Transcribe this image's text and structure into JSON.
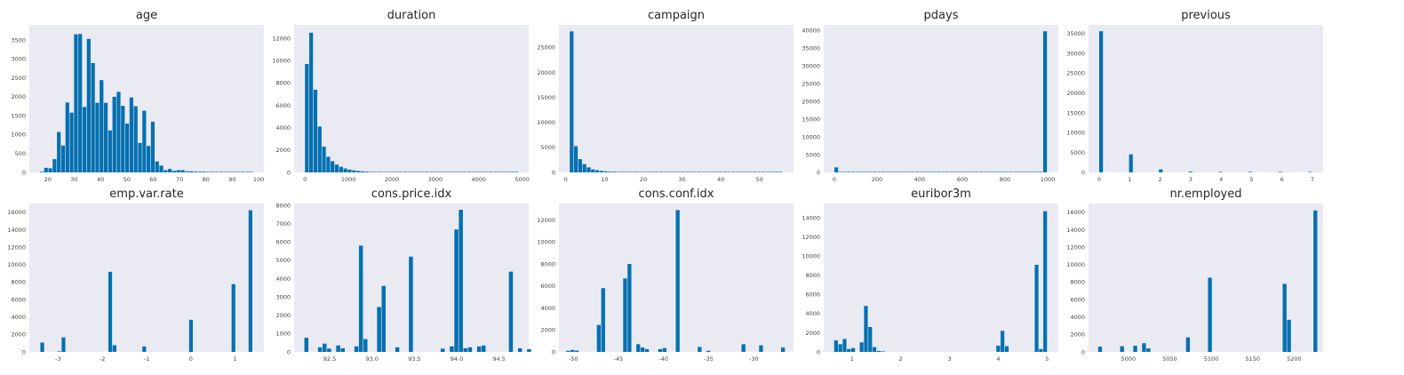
{
  "colors": {
    "bar": "#0570b0",
    "plot_bg": "#eaeaf2",
    "text": "#262626",
    "tick_text": "#444444"
  },
  "chart_data": [
    {
      "type": "bar",
      "title": "age",
      "xlim": [
        13,
        102
      ],
      "ylim": [
        0,
        3900
      ],
      "xticks": [
        20,
        30,
        40,
        50,
        60,
        70,
        80,
        90,
        100
      ],
      "yticks": [
        0,
        500,
        1000,
        1500,
        2000,
        2500,
        3000,
        3500
      ],
      "bins": {
        "start": 17,
        "width": 1.62,
        "values": [
          20,
          120,
          110,
          350,
          1070,
          710,
          1850,
          1580,
          3650,
          3660,
          1730,
          3530,
          2890,
          1840,
          2440,
          1840,
          1110,
          2000,
          2130,
          1760,
          1290,
          1980,
          1750,
          780,
          1630,
          700,
          1340,
          290,
          180,
          60,
          90,
          40,
          60,
          60,
          30,
          30,
          20,
          20,
          20,
          15,
          15,
          10,
          10,
          8,
          5,
          5,
          5,
          3,
          3,
          2
        ]
      }
    },
    {
      "type": "bar",
      "title": "duration",
      "xlim": [
        -250,
        5150
      ],
      "ylim": [
        0,
        13200
      ],
      "xticks": [
        0,
        1000,
        2000,
        3000,
        4000,
        5000
      ],
      "yticks": [
        0,
        2000,
        4000,
        6000,
        8000,
        10000,
        12000
      ],
      "bins": {
        "start": 0,
        "width": 98.36,
        "values": [
          9700,
          12500,
          7400,
          4100,
          2300,
          1400,
          1000,
          700,
          500,
          350,
          250,
          180,
          130,
          100,
          70,
          50,
          40,
          30,
          25,
          20,
          15,
          10,
          8,
          6,
          5,
          4,
          3,
          3,
          2,
          2,
          2,
          1,
          1,
          1,
          1,
          1,
          1,
          1,
          1,
          1,
          1,
          1,
          1,
          1,
          1,
          1,
          1,
          1,
          1,
          1
        ]
      }
    },
    {
      "type": "bar",
      "title": "campaign",
      "xlim": [
        -1.8,
        58.8
      ],
      "ylim": [
        0,
        29500
      ],
      "xticks": [
        0,
        10,
        20,
        30,
        40,
        50
      ],
      "yticks": [
        0,
        5000,
        10000,
        15000,
        20000,
        25000
      ],
      "bins": {
        "start": 1,
        "width": 1.1,
        "values": [
          28200,
          5250,
          2650,
          1650,
          1000,
          600,
          450,
          300,
          200,
          150,
          150,
          100,
          80,
          60,
          40,
          30,
          25,
          20,
          15,
          12,
          10,
          8,
          6,
          5,
          4,
          3,
          3,
          2,
          2,
          2,
          2,
          2,
          1,
          1,
          1,
          1,
          1,
          1,
          1,
          1,
          1,
          1,
          1,
          1,
          1,
          1,
          1,
          1,
          1,
          1
        ]
      }
    },
    {
      "type": "bar",
      "title": "pdays",
      "xlim": [
        -50,
        1050
      ],
      "ylim": [
        0,
        41500
      ],
      "xticks": [
        0,
        200,
        400,
        600,
        800,
        1000
      ],
      "yticks": [
        0,
        5000,
        10000,
        15000,
        20000,
        25000,
        30000,
        35000,
        40000
      ],
      "bins": {
        "start": 0,
        "width": 19.98,
        "values": [
          1400,
          40,
          20,
          10,
          5,
          3,
          2,
          2,
          1,
          1,
          1,
          1,
          1,
          1,
          1,
          1,
          1,
          1,
          1,
          1,
          1,
          1,
          1,
          1,
          1,
          1,
          1,
          1,
          1,
          1,
          1,
          1,
          1,
          1,
          1,
          1,
          1,
          1,
          1,
          1,
          1,
          1,
          1,
          1,
          1,
          1,
          1,
          1,
          1,
          39700
        ]
      }
    },
    {
      "type": "bar",
      "title": "previous",
      "xlim": [
        -0.35,
        7.35
      ],
      "ylim": [
        0,
        37200
      ],
      "xticks": [
        0,
        1,
        2,
        3,
        4,
        5,
        6,
        7
      ],
      "yticks": [
        0,
        5000,
        10000,
        15000,
        20000,
        25000,
        30000,
        35000
      ],
      "bins": {
        "start": 0,
        "width": 0.14,
        "values": [
          35600,
          0,
          0,
          0,
          0,
          0,
          0,
          4550,
          0,
          0,
          0,
          0,
          0,
          0,
          750,
          0,
          0,
          0,
          0,
          0,
          0,
          220,
          0,
          0,
          0,
          0,
          0,
          0,
          70,
          0,
          0,
          0,
          0,
          0,
          0,
          18,
          0,
          0,
          0,
          0,
          0,
          0,
          5,
          0,
          0,
          0,
          0,
          0,
          0,
          1
        ]
      }
    },
    {
      "type": "bar",
      "title": "emp.var.rate",
      "xlim": [
        -3.65,
        1.65
      ],
      "ylim": [
        0,
        17000
      ],
      "xticks": [
        -3,
        -2,
        -1,
        0,
        1
      ],
      "yticks": [
        0,
        2000,
        4000,
        6000,
        8000,
        10000,
        12000,
        14000,
        16000
      ],
      "bins": {
        "start": -3.4,
        "width": 0.096,
        "values": [
          1070,
          0,
          0,
          0,
          20,
          1660,
          0,
          0,
          0,
          0,
          0,
          0,
          0,
          0,
          0,
          0,
          9180,
          770,
          0,
          0,
          0,
          0,
          0,
          0,
          630,
          0,
          0,
          0,
          0,
          0,
          0,
          0,
          0,
          0,
          0,
          3680,
          0,
          0,
          0,
          0,
          0,
          0,
          0,
          0,
          0,
          7760,
          0,
          0,
          0,
          16230
        ]
      }
    },
    {
      "type": "bar",
      "title": "cons.price.idx",
      "xlim": [
        92.08,
        94.85
      ],
      "ylim": [
        0,
        8100
      ],
      "xticks": [
        92.5,
        93.0,
        93.5,
        94.0,
        94.5
      ],
      "yticks": [
        0,
        1000,
        2000,
        3000,
        4000,
        5000,
        6000,
        7000,
        8000
      ],
      "bins": {
        "start": 92.201,
        "width": 0.05366,
        "values": [
          770,
          0,
          0,
          250,
          450,
          180,
          0,
          350,
          200,
          0,
          0,
          300,
          5800,
          700,
          0,
          0,
          2450,
          3600,
          0,
          0,
          250,
          0,
          0,
          5200,
          0,
          0,
          0,
          0,
          0,
          0,
          180,
          0,
          300,
          6680,
          7760,
          200,
          250,
          0,
          300,
          350,
          0,
          0,
          0,
          0,
          0,
          4380,
          0,
          200,
          0,
          150
        ]
      }
    },
    {
      "type": "bar",
      "title": "cons.conf.idx",
      "xlim": [
        -51.6,
        -25.6
      ],
      "ylim": [
        0,
        13500
      ],
      "xticks": [
        -50,
        -45,
        -40,
        -35,
        -30
      ],
      "yticks": [
        0,
        2000,
        4000,
        6000,
        8000,
        10000,
        12000
      ],
      "bins": {
        "start": -50.8,
        "width": 0.486,
        "values": [
          100,
          180,
          120,
          0,
          0,
          0,
          0,
          2450,
          5800,
          0,
          0,
          0,
          0,
          6680,
          8000,
          0,
          700,
          400,
          250,
          0,
          0,
          250,
          350,
          0,
          0,
          12900,
          0,
          0,
          0,
          0,
          450,
          0,
          100,
          0,
          0,
          0,
          0,
          0,
          0,
          0,
          700,
          0,
          0,
          0,
          600,
          0,
          0,
          0,
          0,
          400
        ]
      }
    },
    {
      "type": "bar",
      "title": "euribor3m",
      "xlim": [
        0.42,
        5.23
      ],
      "ylim": [
        0,
        15500
      ],
      "xticks": [
        1,
        2,
        3,
        4,
        5
      ],
      "yticks": [
        0,
        2000,
        4000,
        6000,
        8000,
        10000,
        12000,
        14000
      ],
      "bins": {
        "start": 0.634,
        "width": 0.0875,
        "values": [
          1200,
          800,
          1350,
          300,
          400,
          0,
          1000,
          4800,
          2600,
          500,
          100,
          30,
          0,
          0,
          0,
          0,
          0,
          0,
          0,
          0,
          0,
          0,
          0,
          0,
          0,
          0,
          0,
          0,
          0,
          0,
          0,
          0,
          0,
          0,
          0,
          0,
          0,
          0,
          650,
          2200,
          600,
          0,
          0,
          0,
          0,
          0,
          0,
          9100,
          300,
          14700
        ]
      }
    },
    {
      "type": "bar",
      "title": "nr.employed",
      "xlim": [
        4952,
        5235
      ],
      "ylim": [
        0,
        17000
      ],
      "xticks": [
        5000,
        5050,
        5100,
        5150,
        5200
      ],
      "yticks": [
        0,
        2000,
        4000,
        6000,
        8000,
        10000,
        12000,
        14000,
        16000
      ],
      "bins": {
        "start": 4963.6,
        "width": 5.3,
        "values": [
          600,
          0,
          0,
          0,
          0,
          650,
          0,
          0,
          700,
          0,
          1000,
          400,
          0,
          0,
          0,
          0,
          0,
          0,
          0,
          0,
          1660,
          0,
          0,
          0,
          0,
          8500,
          0,
          0,
          0,
          0,
          0,
          0,
          0,
          0,
          0,
          0,
          0,
          0,
          0,
          0,
          0,
          0,
          7800,
          3680,
          0,
          0,
          0,
          0,
          0,
          16200
        ]
      }
    }
  ]
}
